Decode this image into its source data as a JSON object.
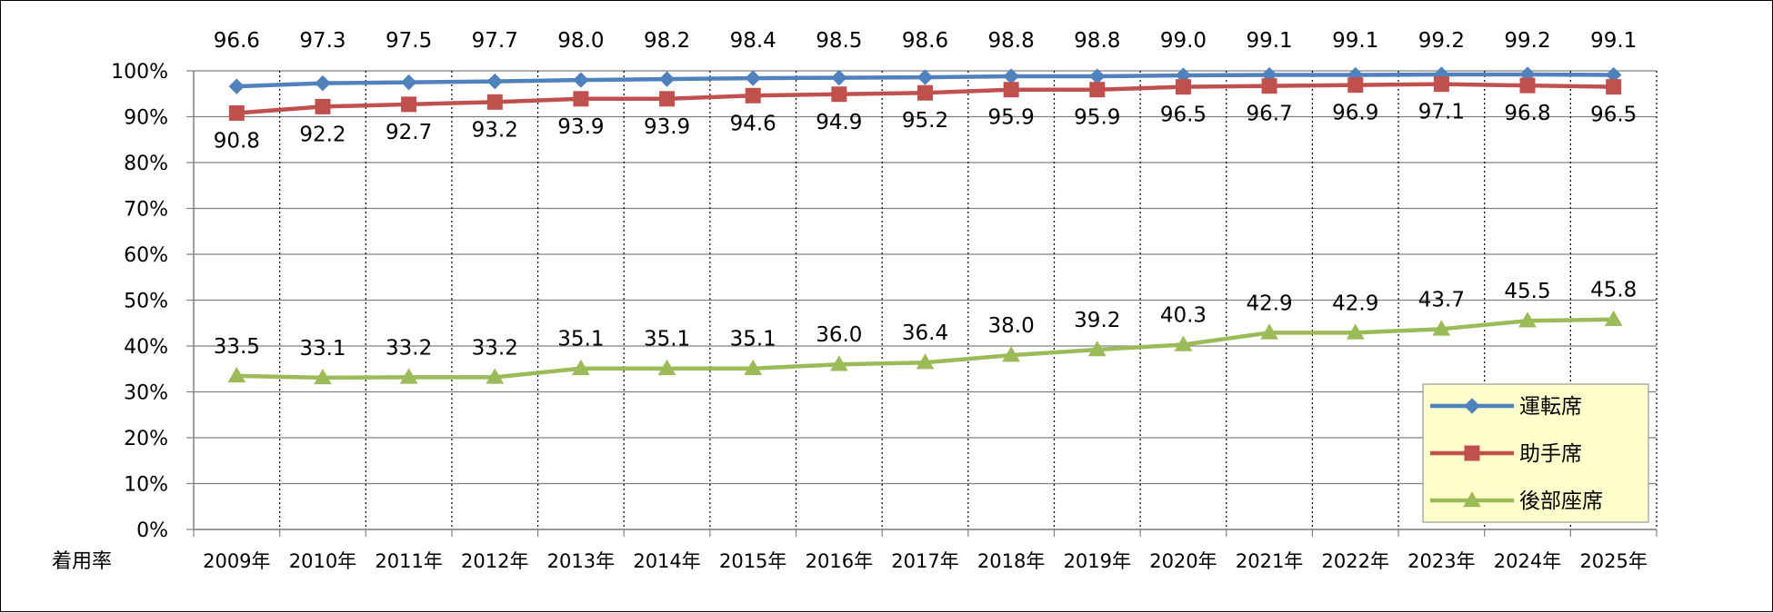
{
  "chart_data": {
    "type": "line",
    "title": "",
    "xlabel": "",
    "ylabel": "着用率",
    "ylim": [
      0,
      100
    ],
    "ytick_values": [
      0,
      10,
      20,
      30,
      40,
      50,
      60,
      70,
      80,
      90,
      100
    ],
    "ytick_labels": [
      "0%",
      "10%",
      "20%",
      "30%",
      "40%",
      "50%",
      "60%",
      "70%",
      "80%",
      "90%",
      "100%"
    ],
    "categories": [
      "2009年",
      "2010年",
      "2011年",
      "2012年",
      "2013年",
      "2014年",
      "2015年",
      "2016年",
      "2017年",
      "2018年",
      "2019年",
      "2020年",
      "2021年",
      "2022年",
      "2023年",
      "2024年",
      "2025年"
    ],
    "grid": {
      "horizontal": "solid",
      "vertical": "dotted"
    },
    "legend_position": "bottom-right",
    "series": [
      {
        "name": "運転席",
        "color": "#4F81BD",
        "marker": "diamond",
        "label_position": "above",
        "values": [
          96.6,
          97.3,
          97.5,
          97.7,
          98.0,
          98.2,
          98.4,
          98.5,
          98.6,
          98.8,
          98.8,
          99.0,
          99.1,
          99.1,
          99.2,
          99.2,
          99.1
        ],
        "labels": [
          "96.6",
          "97.3",
          "97.5",
          "97.7",
          "98.0",
          "98.2",
          "98.4",
          "98.5",
          "98.6",
          "98.8",
          "98.8",
          "99.0",
          "99.1",
          "99.1",
          "99.2",
          "99.2",
          "99.1"
        ]
      },
      {
        "name": "助手席",
        "color": "#C0504D",
        "marker": "square",
        "label_position": "below",
        "values": [
          90.8,
          92.2,
          92.7,
          93.2,
          93.9,
          93.9,
          94.6,
          94.9,
          95.2,
          95.9,
          95.9,
          96.5,
          96.7,
          96.9,
          97.1,
          96.8,
          96.5
        ],
        "labels": [
          "90.8",
          "92.2",
          "92.7",
          "93.2",
          "93.9",
          "93.9",
          "94.6",
          "94.9",
          "95.2",
          "95.9",
          "95.9",
          "96.5",
          "96.7",
          "96.9",
          "97.1",
          "96.8",
          "96.5"
        ]
      },
      {
        "name": "後部座席",
        "color": "#9BBB59",
        "marker": "triangle",
        "label_position": "above",
        "values": [
          33.5,
          33.1,
          33.2,
          33.2,
          35.1,
          35.1,
          35.1,
          36.0,
          36.4,
          38.0,
          39.2,
          40.3,
          42.9,
          42.9,
          43.7,
          45.5,
          45.8
        ],
        "labels": [
          "33.5",
          "33.1",
          "33.2",
          "33.2",
          "35.1",
          "35.1",
          "35.1",
          "36.0",
          "36.4",
          "38.0",
          "39.2",
          "40.3",
          "42.9",
          "42.9",
          "43.7",
          "45.5",
          "45.8"
        ]
      }
    ],
    "legend_background": "#FFFFCC"
  }
}
